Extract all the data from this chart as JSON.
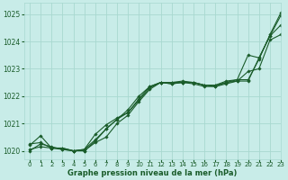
{
  "title": "Graphe pression niveau de la mer (hPa)",
  "background_color": "#c8ece8",
  "grid_color": "#a8d8d0",
  "line_color": "#1a5c2a",
  "xlim": [
    -0.5,
    23
  ],
  "ylim": [
    1019.7,
    1025.4
  ],
  "yticks": [
    1020,
    1021,
    1022,
    1023,
    1024,
    1025
  ],
  "xticks": [
    0,
    1,
    2,
    3,
    4,
    5,
    6,
    7,
    8,
    9,
    10,
    11,
    12,
    13,
    14,
    15,
    16,
    17,
    18,
    19,
    20,
    21,
    22,
    23
  ],
  "series": [
    [
      1020.0,
      1020.25,
      1020.15,
      1020.05,
      1020.0,
      1020.0,
      1020.35,
      1020.8,
      1021.15,
      1021.4,
      1021.85,
      1022.3,
      1022.5,
      1022.45,
      1022.5,
      1022.45,
      1022.35,
      1022.35,
      1022.45,
      1022.55,
      1022.55,
      1023.4,
      1024.2,
      1024.95
    ],
    [
      1020.05,
      1020.15,
      1020.1,
      1020.05,
      1020.0,
      1020.05,
      1020.6,
      1020.95,
      1021.2,
      1021.4,
      1021.9,
      1022.35,
      1022.5,
      1022.5,
      1022.55,
      1022.5,
      1022.4,
      1022.4,
      1022.55,
      1022.6,
      1022.6,
      1023.35,
      1024.25,
      1025.05
    ],
    [
      1020.2,
      1020.55,
      1020.1,
      1020.1,
      1020.0,
      1020.05,
      1020.4,
      1020.8,
      1021.15,
      1021.5,
      1022.0,
      1022.35,
      1022.5,
      1022.45,
      1022.5,
      1022.5,
      1022.4,
      1022.35,
      1022.5,
      1022.55,
      1022.9,
      1023.0,
      1024.05,
      1024.25
    ],
    [
      1020.25,
      1020.3,
      1020.1,
      1020.1,
      1020.0,
      1020.0,
      1020.3,
      1020.5,
      1021.0,
      1021.3,
      1021.8,
      1022.25,
      1022.5,
      1022.5,
      1022.5,
      1022.5,
      1022.4,
      1022.4,
      1022.5,
      1022.6,
      1023.5,
      1023.4,
      1024.2,
      1024.6
    ]
  ]
}
